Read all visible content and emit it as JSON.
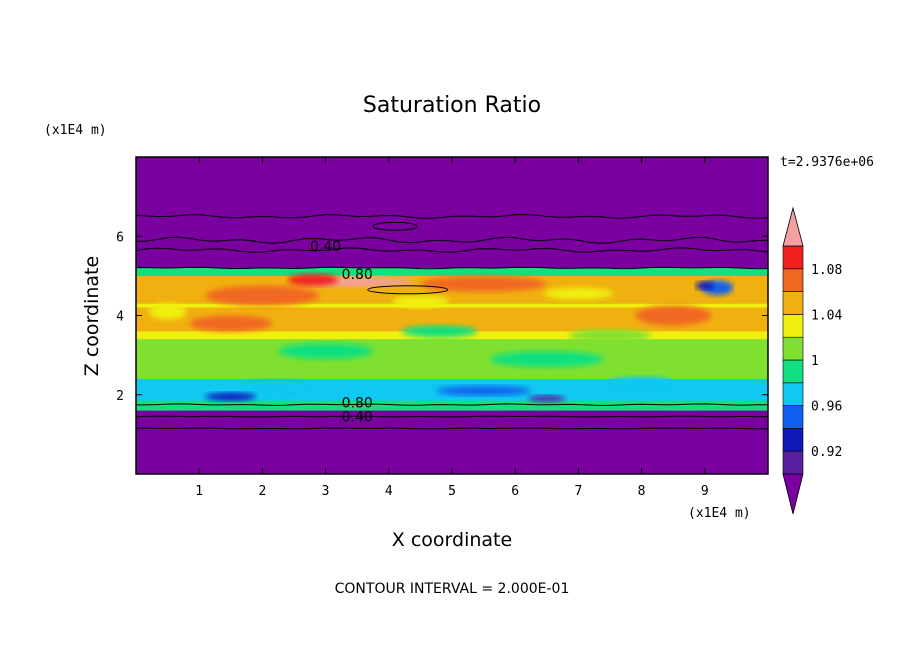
{
  "chart_data": {
    "type": "heatmap",
    "title": "Saturation Ratio",
    "xlabel": "X coordinate",
    "ylabel": "Z coordinate",
    "x_unit": "(x1E4 m)",
    "y_unit": "(x1E4 m)",
    "xlim": [
      0,
      10
    ],
    "ylim": [
      0,
      8
    ],
    "x_ticks": [
      "1",
      "2",
      "3",
      "4",
      "5",
      "6",
      "7",
      "8",
      "9"
    ],
    "y_ticks": [
      "2",
      "4",
      "6"
    ],
    "time_label": "t=2.9376e+06",
    "footer": "CONTOUR INTERVAL = 2.000E-01",
    "contour_labels": [
      {
        "text": "0.40",
        "x": 3.0,
        "z": 5.75
      },
      {
        "text": "0.80",
        "x": 3.5,
        "z": 5.05
      },
      {
        "text": "0.80",
        "x": 3.5,
        "z": 1.8
      },
      {
        "text": "0.40",
        "x": 3.5,
        "z": 1.45
      }
    ],
    "colorbar": {
      "levels": [
        0.9,
        0.92,
        0.94,
        0.96,
        0.98,
        1.0,
        1.02,
        1.04,
        1.06,
        1.08,
        1.1
      ],
      "tick_labels": [
        "0.92",
        "0.96",
        "1",
        "1.04",
        "1.08"
      ],
      "colors": [
        "#5a1fa0",
        "#1018b8",
        "#1060f0",
        "#10c8f0",
        "#10e080",
        "#80e030",
        "#f0f010",
        "#f0b010",
        "#f06820",
        "#f02020"
      ],
      "under_color": "#7a00a0",
      "over_color": "#f4a0a0"
    }
  }
}
